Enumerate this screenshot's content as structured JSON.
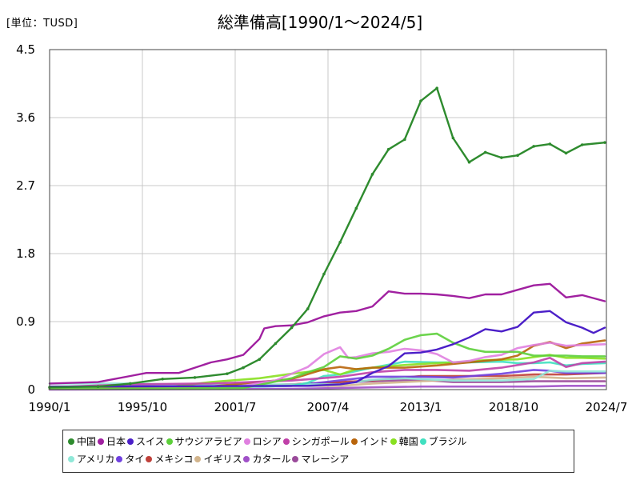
{
  "unit_label": "[単位：TUSD]",
  "chart_data": {
    "type": "line",
    "title": "総準備高[1990/1～2024/5]",
    "xlabel": "",
    "ylabel": "",
    "x_range": [
      1990.0,
      2024.5
    ],
    "ylim": [
      0,
      4.5
    ],
    "y_ticks": [
      "4.5",
      "3.6",
      "2.7",
      "1.8",
      "0.9",
      "0"
    ],
    "x_ticks": [
      "1990/1",
      "1995/10",
      "2001/7",
      "2007/4",
      "2013/1",
      "2018/10",
      "2024/7"
    ],
    "grid": true,
    "legend_position": "bottom",
    "series": [
      {
        "name": "中国",
        "color": "#2e8b2e",
        "points": [
          [
            1990.0,
            0.03
          ],
          [
            1993.0,
            0.04
          ],
          [
            1995.0,
            0.08
          ],
          [
            1997.0,
            0.14
          ],
          [
            1999.0,
            0.16
          ],
          [
            2001.0,
            0.21
          ],
          [
            2002.0,
            0.29
          ],
          [
            2003.0,
            0.4
          ],
          [
            2004.0,
            0.61
          ],
          [
            2005.0,
            0.82
          ],
          [
            2006.0,
            1.07
          ],
          [
            2007.0,
            1.53
          ],
          [
            2008.0,
            1.95
          ],
          [
            2009.0,
            2.4
          ],
          [
            2010.0,
            2.85
          ],
          [
            2011.0,
            3.18
          ],
          [
            2012.0,
            3.31
          ],
          [
            2013.0,
            3.82
          ],
          [
            2014.0,
            3.99
          ],
          [
            2015.0,
            3.33
          ],
          [
            2016.0,
            3.01
          ],
          [
            2017.0,
            3.14
          ],
          [
            2018.0,
            3.07
          ],
          [
            2019.0,
            3.1
          ],
          [
            2020.0,
            3.22
          ],
          [
            2021.0,
            3.25
          ],
          [
            2022.0,
            3.13
          ],
          [
            2023.0,
            3.24
          ],
          [
            2024.4,
            3.27
          ]
        ]
      },
      {
        "name": "日本",
        "color": "#a020a0",
        "points": [
          [
            1990.0,
            0.08
          ],
          [
            1993.0,
            0.1
          ],
          [
            1995.0,
            0.18
          ],
          [
            1996.0,
            0.22
          ],
          [
            1998.0,
            0.22
          ],
          [
            1999.0,
            0.29
          ],
          [
            2000.0,
            0.36
          ],
          [
            2001.0,
            0.4
          ],
          [
            2002.0,
            0.46
          ],
          [
            2003.0,
            0.67
          ],
          [
            2003.3,
            0.81
          ],
          [
            2004.0,
            0.84
          ],
          [
            2005.0,
            0.85
          ],
          [
            2006.0,
            0.89
          ],
          [
            2007.0,
            0.97
          ],
          [
            2008.0,
            1.02
          ],
          [
            2009.0,
            1.04
          ],
          [
            2010.0,
            1.1
          ],
          [
            2011.0,
            1.3
          ],
          [
            2012.0,
            1.27
          ],
          [
            2013.0,
            1.27
          ],
          [
            2014.0,
            1.26
          ],
          [
            2015.0,
            1.24
          ],
          [
            2016.0,
            1.21
          ],
          [
            2017.0,
            1.26
          ],
          [
            2018.0,
            1.26
          ],
          [
            2019.0,
            1.32
          ],
          [
            2020.0,
            1.38
          ],
          [
            2021.0,
            1.4
          ],
          [
            2022.0,
            1.22
          ],
          [
            2023.0,
            1.25
          ],
          [
            2024.4,
            1.17
          ]
        ]
      },
      {
        "name": "スイス",
        "color": "#4b1fc8",
        "points": [
          [
            1990.0,
            0.04
          ],
          [
            2006.0,
            0.05
          ],
          [
            2008.0,
            0.07
          ],
          [
            2009.0,
            0.1
          ],
          [
            2010.0,
            0.22
          ],
          [
            2011.0,
            0.31
          ],
          [
            2012.0,
            0.48
          ],
          [
            2013.0,
            0.49
          ],
          [
            2014.0,
            0.53
          ],
          [
            2015.0,
            0.6
          ],
          [
            2016.0,
            0.69
          ],
          [
            2017.0,
            0.8
          ],
          [
            2018.0,
            0.77
          ],
          [
            2019.0,
            0.83
          ],
          [
            2020.0,
            1.02
          ],
          [
            2021.0,
            1.04
          ],
          [
            2022.0,
            0.89
          ],
          [
            2023.0,
            0.82
          ],
          [
            2023.7,
            0.75
          ],
          [
            2024.4,
            0.82
          ]
        ]
      },
      {
        "name": "サウジアラビア",
        "color": "#5ccf3a",
        "points": [
          [
            1990.0,
            0.01
          ],
          [
            2002.0,
            0.02
          ],
          [
            2005.0,
            0.15
          ],
          [
            2006.0,
            0.23
          ],
          [
            2007.0,
            0.3
          ],
          [
            2008.0,
            0.44
          ],
          [
            2009.0,
            0.41
          ],
          [
            2010.0,
            0.45
          ],
          [
            2011.0,
            0.54
          ],
          [
            2012.0,
            0.66
          ],
          [
            2013.0,
            0.72
          ],
          [
            2014.0,
            0.74
          ],
          [
            2015.0,
            0.62
          ],
          [
            2016.0,
            0.54
          ],
          [
            2017.0,
            0.5
          ],
          [
            2018.0,
            0.5
          ],
          [
            2019.0,
            0.5
          ],
          [
            2020.0,
            0.45
          ],
          [
            2021.0,
            0.45
          ],
          [
            2022.0,
            0.45
          ],
          [
            2023.0,
            0.44
          ],
          [
            2024.4,
            0.44
          ]
        ]
      },
      {
        "name": "ロシア",
        "color": "#e080e0",
        "points": [
          [
            1990.0,
            0.01
          ],
          [
            2000.0,
            0.02
          ],
          [
            2002.0,
            0.05
          ],
          [
            2004.0,
            0.12
          ],
          [
            2006.0,
            0.3
          ],
          [
            2007.0,
            0.47
          ],
          [
            2008.0,
            0.56
          ],
          [
            2008.5,
            0.42
          ],
          [
            2009.0,
            0.43
          ],
          [
            2010.0,
            0.48
          ],
          [
            2011.0,
            0.5
          ],
          [
            2012.0,
            0.54
          ],
          [
            2013.0,
            0.52
          ],
          [
            2014.0,
            0.47
          ],
          [
            2015.0,
            0.36
          ],
          [
            2016.0,
            0.38
          ],
          [
            2017.0,
            0.43
          ],
          [
            2018.0,
            0.46
          ],
          [
            2019.0,
            0.55
          ],
          [
            2020.0,
            0.59
          ],
          [
            2021.0,
            0.62
          ],
          [
            2022.0,
            0.58
          ],
          [
            2023.0,
            0.59
          ],
          [
            2024.4,
            0.6
          ]
        ]
      },
      {
        "name": "シンガポール",
        "color": "#c040a8",
        "points": [
          [
            1990.0,
            0.03
          ],
          [
            1995.0,
            0.07
          ],
          [
            2000.0,
            0.08
          ],
          [
            2005.0,
            0.12
          ],
          [
            2008.0,
            0.17
          ],
          [
            2010.0,
            0.23
          ],
          [
            2012.0,
            0.26
          ],
          [
            2014.0,
            0.26
          ],
          [
            2016.0,
            0.25
          ],
          [
            2018.0,
            0.29
          ],
          [
            2020.0,
            0.36
          ],
          [
            2021.0,
            0.42
          ],
          [
            2022.0,
            0.3
          ],
          [
            2023.0,
            0.35
          ],
          [
            2024.4,
            0.37
          ]
        ]
      },
      {
        "name": "インド",
        "color": "#b8640a",
        "points": [
          [
            1990.0,
            0.01
          ],
          [
            1995.0,
            0.02
          ],
          [
            2000.0,
            0.04
          ],
          [
            2003.0,
            0.1
          ],
          [
            2005.0,
            0.14
          ],
          [
            2007.0,
            0.27
          ],
          [
            2008.0,
            0.3
          ],
          [
            2009.0,
            0.27
          ],
          [
            2010.0,
            0.29
          ],
          [
            2012.0,
            0.29
          ],
          [
            2014.0,
            0.32
          ],
          [
            2016.0,
            0.36
          ],
          [
            2018.0,
            0.4
          ],
          [
            2019.0,
            0.45
          ],
          [
            2020.0,
            0.58
          ],
          [
            2021.0,
            0.63
          ],
          [
            2022.0,
            0.55
          ],
          [
            2023.0,
            0.61
          ],
          [
            2024.4,
            0.65
          ]
        ]
      },
      {
        "name": "韓国",
        "color": "#88e020",
        "points": [
          [
            1990.0,
            0.02
          ],
          [
            1997.0,
            0.02
          ],
          [
            1998.0,
            0.05
          ],
          [
            2000.0,
            0.1
          ],
          [
            2003.0,
            0.15
          ],
          [
            2005.0,
            0.21
          ],
          [
            2007.0,
            0.26
          ],
          [
            2008.0,
            0.2
          ],
          [
            2009.0,
            0.27
          ],
          [
            2011.0,
            0.31
          ],
          [
            2013.0,
            0.34
          ],
          [
            2015.0,
            0.36
          ],
          [
            2017.0,
            0.39
          ],
          [
            2019.0,
            0.4
          ],
          [
            2021.0,
            0.46
          ],
          [
            2022.0,
            0.42
          ],
          [
            2023.0,
            0.42
          ],
          [
            2024.4,
            0.41
          ]
        ]
      },
      {
        "name": "ブラジル",
        "color": "#40e0c0",
        "points": [
          [
            1990.0,
            0.01
          ],
          [
            1995.0,
            0.05
          ],
          [
            2000.0,
            0.03
          ],
          [
            2005.0,
            0.05
          ],
          [
            2006.0,
            0.09
          ],
          [
            2007.0,
            0.18
          ],
          [
            2008.0,
            0.2
          ],
          [
            2010.0,
            0.29
          ],
          [
            2012.0,
            0.37
          ],
          [
            2014.0,
            0.36
          ],
          [
            2016.0,
            0.36
          ],
          [
            2018.0,
            0.37
          ],
          [
            2019.0,
            0.35
          ],
          [
            2020.0,
            0.35
          ],
          [
            2021.0,
            0.36
          ],
          [
            2022.0,
            0.32
          ],
          [
            2023.0,
            0.34
          ],
          [
            2024.4,
            0.35
          ]
        ]
      },
      {
        "name": "アメリカ",
        "color": "#90e8d8",
        "points": [
          [
            1990.0,
            0.08
          ],
          [
            1995.0,
            0.08
          ],
          [
            2000.0,
            0.06
          ],
          [
            2005.0,
            0.07
          ],
          [
            2008.0,
            0.07
          ],
          [
            2010.0,
            0.13
          ],
          [
            2012.0,
            0.15
          ],
          [
            2015.0,
            0.12
          ],
          [
            2018.0,
            0.12
          ],
          [
            2020.0,
            0.14
          ],
          [
            2021.0,
            0.25
          ],
          [
            2022.0,
            0.24
          ],
          [
            2023.0,
            0.24
          ],
          [
            2024.4,
            0.24
          ]
        ]
      },
      {
        "name": "タイ",
        "color": "#7040e0",
        "points": [
          [
            1990.0,
            0.01
          ],
          [
            1995.0,
            0.03
          ],
          [
            1997.0,
            0.03
          ],
          [
            2000.0,
            0.03
          ],
          [
            2005.0,
            0.05
          ],
          [
            2010.0,
            0.17
          ],
          [
            2013.0,
            0.17
          ],
          [
            2015.0,
            0.16
          ],
          [
            2018.0,
            0.21
          ],
          [
            2020.0,
            0.26
          ],
          [
            2021.0,
            0.25
          ],
          [
            2022.0,
            0.22
          ],
          [
            2024.4,
            0.22
          ]
        ]
      },
      {
        "name": "メキシコ",
        "color": "#c0403a",
        "points": [
          [
            1990.0,
            0.01
          ],
          [
            1995.0,
            0.01
          ],
          [
            2000.0,
            0.04
          ],
          [
            2005.0,
            0.07
          ],
          [
            2010.0,
            0.12
          ],
          [
            2013.0,
            0.18
          ],
          [
            2015.0,
            0.18
          ],
          [
            2018.0,
            0.18
          ],
          [
            2020.0,
            0.2
          ],
          [
            2022.0,
            0.2
          ],
          [
            2024.4,
            0.22
          ]
        ]
      },
      {
        "name": "イギリス",
        "color": "#d2b48c",
        "points": [
          [
            1990.0,
            0.04
          ],
          [
            1995.0,
            0.04
          ],
          [
            2000.0,
            0.04
          ],
          [
            2005.0,
            0.05
          ],
          [
            2008.0,
            0.05
          ],
          [
            2010.0,
            0.08
          ],
          [
            2012.0,
            0.1
          ],
          [
            2015.0,
            0.13
          ],
          [
            2018.0,
            0.15
          ],
          [
            2020.0,
            0.17
          ],
          [
            2022.0,
            0.15
          ],
          [
            2024.4,
            0.16
          ]
        ]
      },
      {
        "name": "カタール",
        "color": "#a050c8",
        "points": [
          [
            1990.0,
            0.0
          ],
          [
            2005.0,
            0.01
          ],
          [
            2010.0,
            0.03
          ],
          [
            2013.0,
            0.04
          ],
          [
            2015.0,
            0.04
          ],
          [
            2018.0,
            0.04
          ],
          [
            2020.0,
            0.04
          ],
          [
            2022.0,
            0.05
          ],
          [
            2024.4,
            0.05
          ]
        ]
      },
      {
        "name": "マレーシア",
        "color": "#9a4a9a",
        "points": [
          [
            1990.0,
            0.01
          ],
          [
            1995.0,
            0.03
          ],
          [
            1997.0,
            0.02
          ],
          [
            2000.0,
            0.03
          ],
          [
            2005.0,
            0.07
          ],
          [
            2008.0,
            0.09
          ],
          [
            2010.0,
            0.11
          ],
          [
            2013.0,
            0.13
          ],
          [
            2015.0,
            0.1
          ],
          [
            2018.0,
            0.1
          ],
          [
            2020.0,
            0.11
          ],
          [
            2024.4,
            0.11
          ]
        ]
      }
    ]
  }
}
